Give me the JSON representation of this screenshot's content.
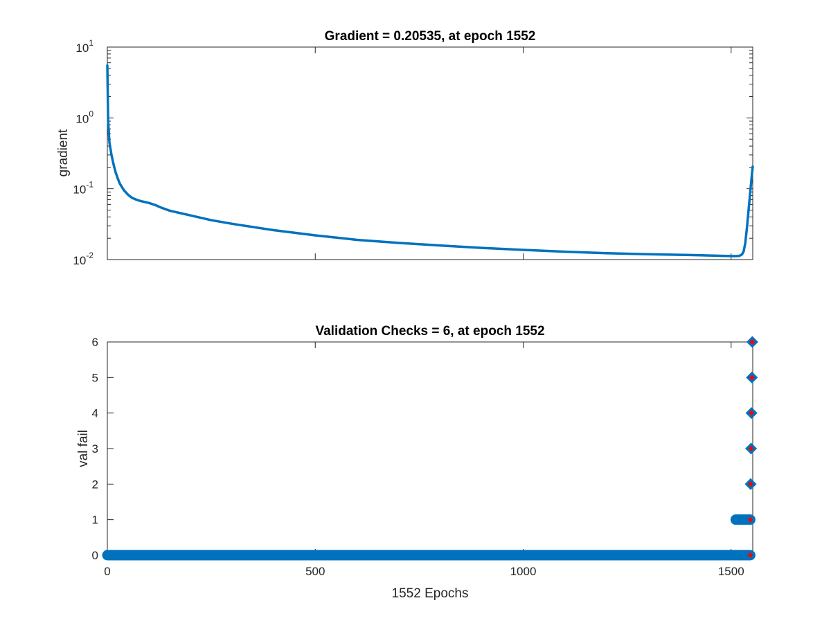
{
  "chart_data": [
    {
      "type": "line",
      "title": "Gradient = 0.20535, at epoch 1552",
      "xlabel": "",
      "ylabel": "gradient",
      "yscale": "log",
      "xlim": [
        0,
        1552
      ],
      "ylim": [
        0.01,
        10
      ],
      "x_ticks": [
        0,
        500,
        1000,
        1500
      ],
      "y_ticks": [
        {
          "value": 0.01,
          "base": "10",
          "exponent": "-2"
        },
        {
          "value": 0.1,
          "base": "10",
          "exponent": "-1"
        },
        {
          "value": 1,
          "base": "10",
          "exponent": "0"
        },
        {
          "value": 10,
          "base": "10",
          "exponent": "1"
        }
      ],
      "grid": false,
      "series": [
        {
          "color": "#0072bd",
          "x": [
            0,
            2,
            5,
            10,
            15,
            20,
            25,
            30,
            40,
            50,
            60,
            70,
            80,
            100,
            115,
            130,
            150,
            200,
            250,
            300,
            400,
            500,
            600,
            700,
            800,
            900,
            1000,
            1100,
            1200,
            1300,
            1400,
            1480,
            1510,
            1520,
            1526,
            1530,
            1534,
            1538,
            1542,
            1546,
            1550,
            1552
          ],
          "y": [
            5.5,
            0.9,
            0.45,
            0.3,
            0.22,
            0.17,
            0.14,
            0.118,
            0.095,
            0.082,
            0.074,
            0.07,
            0.067,
            0.063,
            0.059,
            0.054,
            0.049,
            0.042,
            0.036,
            0.032,
            0.026,
            0.022,
            0.019,
            0.0172,
            0.0158,
            0.0146,
            0.0137,
            0.0129,
            0.0123,
            0.0119,
            0.0116,
            0.0113,
            0.0112,
            0.0113,
            0.0118,
            0.013,
            0.017,
            0.028,
            0.05,
            0.09,
            0.16,
            0.20535
          ]
        }
      ]
    },
    {
      "type": "scatter",
      "title": "Validation Checks = 6, at epoch 1552",
      "xlabel": "1552 Epochs",
      "ylabel": "val fail",
      "xlim": [
        0,
        1552
      ],
      "ylim": [
        0,
        6
      ],
      "x_ticks": [
        0,
        500,
        1000,
        1500
      ],
      "y_ticks": [
        0,
        1,
        2,
        3,
        4,
        5,
        6
      ],
      "grid": false,
      "series": [
        {
          "color": "#0072bd",
          "marker": "diamond",
          "segments": [
            {
              "x_start": 0,
              "x_end": 1546,
              "y": 0
            },
            {
              "x_start": 1511,
              "x_end": 1546,
              "y": 1
            }
          ],
          "points": [
            {
              "x": 1547,
              "y": 2
            },
            {
              "x": 1548,
              "y": 3
            },
            {
              "x": 1549,
              "y": 4
            },
            {
              "x": 1550,
              "y": 5
            },
            {
              "x": 1551,
              "y": 6
            }
          ]
        },
        {
          "color": "#ff0000",
          "marker": "diamond",
          "points": [
            {
              "x": 1546,
              "y": 0
            },
            {
              "x": 1546,
              "y": 1
            },
            {
              "x": 1547,
              "y": 2
            },
            {
              "x": 1548,
              "y": 3
            },
            {
              "x": 1549,
              "y": 4
            },
            {
              "x": 1550,
              "y": 5
            },
            {
              "x": 1551,
              "y": 6
            }
          ]
        }
      ]
    }
  ]
}
